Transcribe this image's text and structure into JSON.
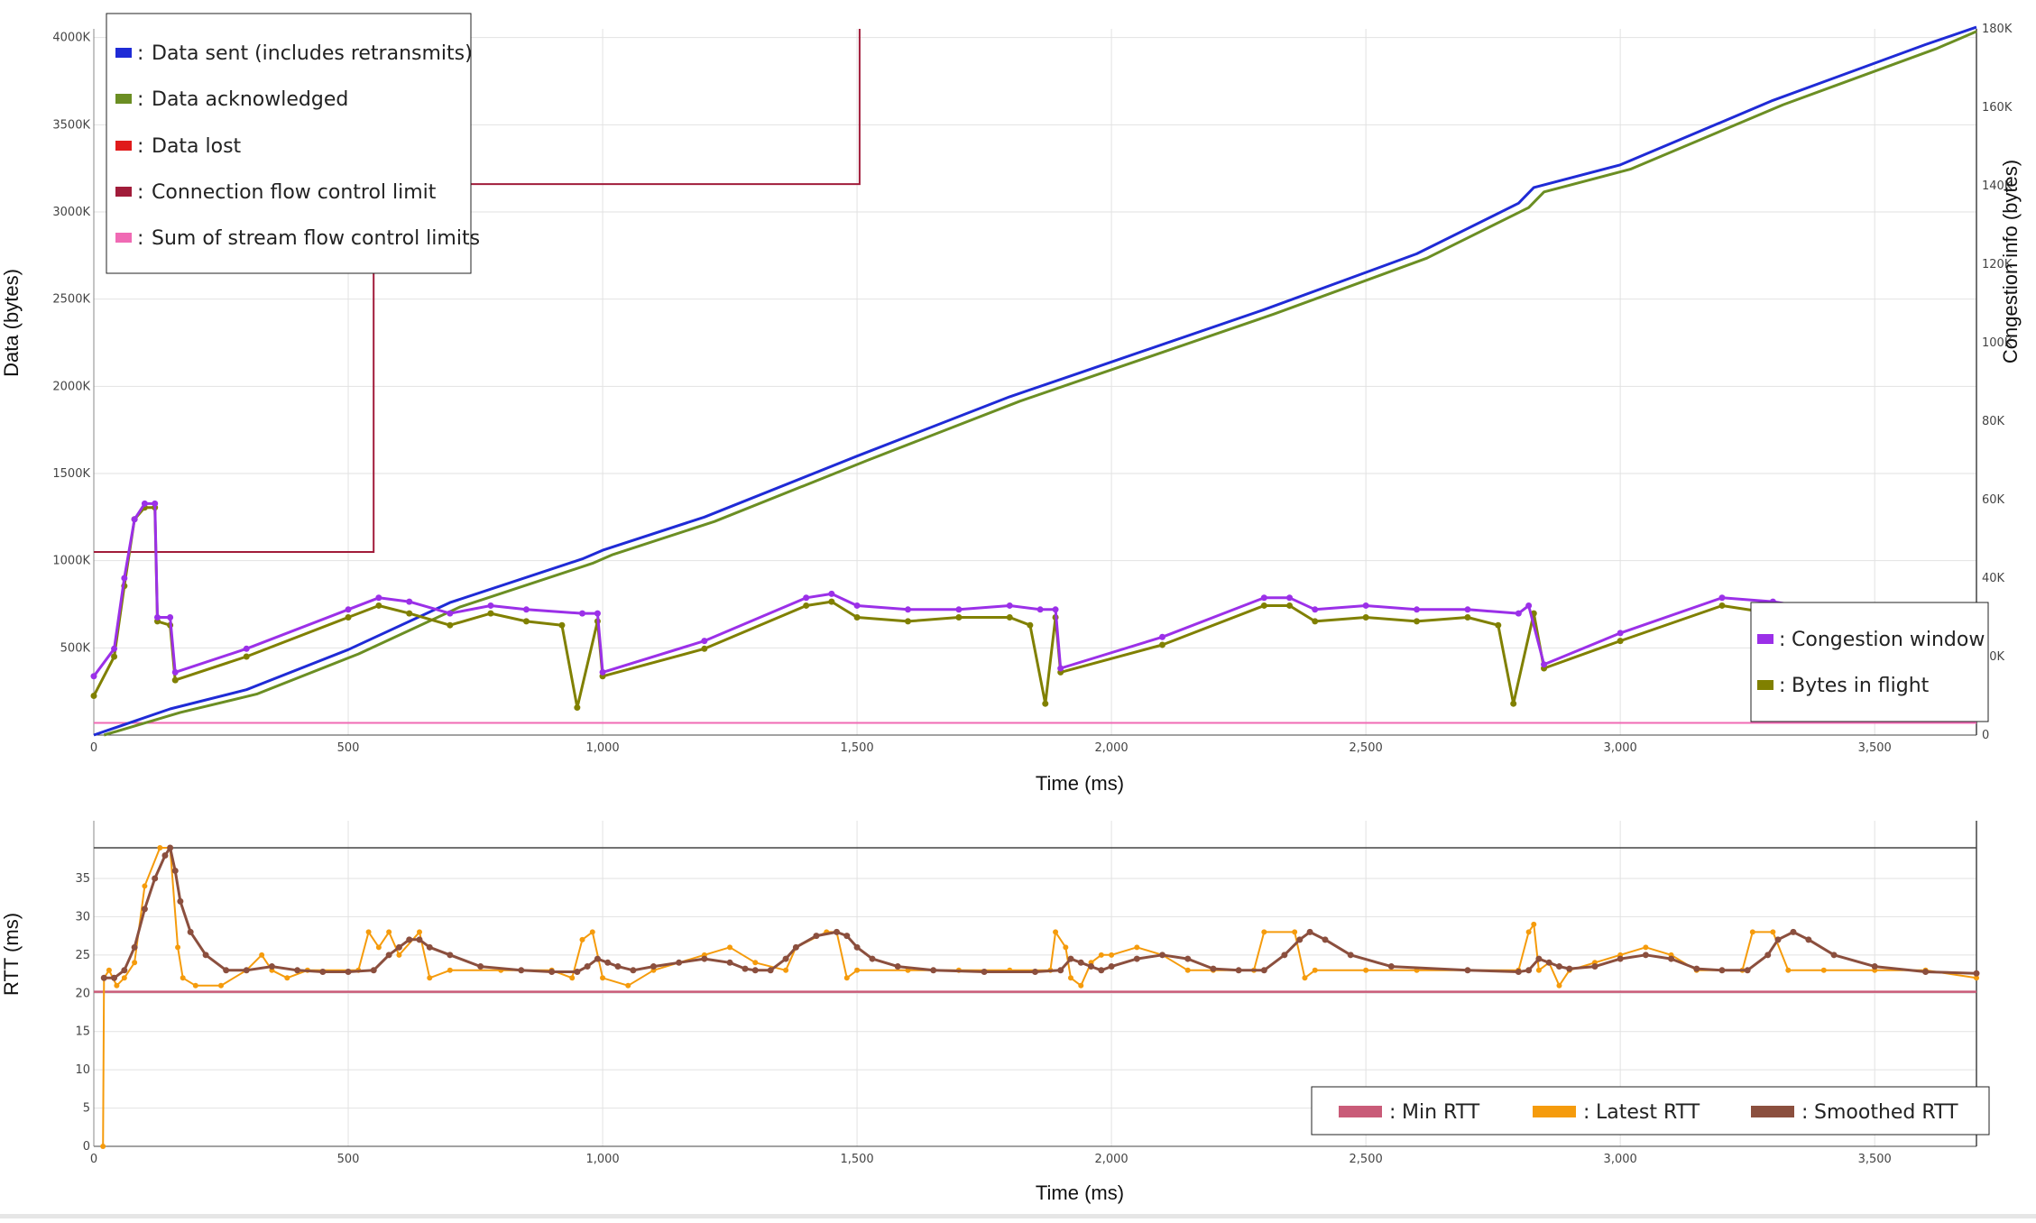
{
  "colors": {
    "data_sent": "#1f2bd6",
    "data_acked": "#6b8e23",
    "data_lost": "#e01b1b",
    "conn_fc": "#a11c3a",
    "stream_fc": "#f06ab4",
    "cwnd": "#9b30e8",
    "bif": "#808000",
    "min_rtt": "#c95b78",
    "latest_rtt": "#f59b0c",
    "smoothed_rtt": "#8b4f3e",
    "grid": "#e2e2e2"
  },
  "chart_data": [
    {
      "type": "line",
      "xlabel": "Time (ms)",
      "ylabel": "Data (bytes)",
      "y2label": "Congestion info (bytes)",
      "xlim": [
        0,
        3700
      ],
      "ylim": [
        0,
        4050000
      ],
      "y2lim": [
        0,
        180000
      ],
      "x_ticks": [
        {
          "v": 0,
          "label": "0"
        },
        {
          "v": 500,
          "label": "500"
        },
        {
          "v": 1000,
          "label": "1,000"
        },
        {
          "v": 1500,
          "label": "1,500"
        },
        {
          "v": 2000,
          "label": "2,000"
        },
        {
          "v": 2500,
          "label": "2,500"
        },
        {
          "v": 3000,
          "label": "3,000"
        },
        {
          "v": 3500,
          "label": "3,500"
        }
      ],
      "y_ticks": [
        {
          "v": 500000,
          "label": "500K"
        },
        {
          "v": 1000000,
          "label": "1000K"
        },
        {
          "v": 1500000,
          "label": "1500K"
        },
        {
          "v": 2000000,
          "label": "2000K"
        },
        {
          "v": 2500000,
          "label": "2500K"
        },
        {
          "v": 3000000,
          "label": "3000K"
        },
        {
          "v": 3500000,
          "label": "3500K"
        },
        {
          "v": 4000000,
          "label": "4000K"
        }
      ],
      "y2_ticks": [
        {
          "v": 0,
          "label": "0"
        },
        {
          "v": 20000,
          "label": "20K"
        },
        {
          "v": 40000,
          "label": "40K"
        },
        {
          "v": 60000,
          "label": "60K"
        },
        {
          "v": 80000,
          "label": "80K"
        },
        {
          "v": 100000,
          "label": "100K"
        },
        {
          "v": 120000,
          "label": "120K"
        },
        {
          "v": 140000,
          "label": "140K"
        },
        {
          "v": 160000,
          "label": "160K"
        },
        {
          "v": 180000,
          "label": "180K"
        }
      ],
      "legend_position": "top-left",
      "legend_secondary_position": "bottom-right",
      "series": [
        {
          "name": "Data sent (includes retransmits)",
          "color_key": "data_sent",
          "axis": "y",
          "x": [
            0,
            150,
            300,
            500,
            700,
            960,
            1000,
            1200,
            1500,
            1800,
            1940,
            2000,
            2300,
            2600,
            2800,
            2830,
            3000,
            3300,
            3600,
            3700
          ],
          "y": [
            0,
            150000,
            260000,
            490000,
            760000,
            1010000,
            1060000,
            1250000,
            1600000,
            1940000,
            2080000,
            2140000,
            2440000,
            2760000,
            3050000,
            3140000,
            3270000,
            3640000,
            3960000,
            4060000
          ]
        },
        {
          "name": "Data acknowledged",
          "color_key": "data_acked",
          "axis": "y",
          "x": [
            20,
            170,
            320,
            520,
            720,
            980,
            1020,
            1220,
            1520,
            1820,
            1960,
            2020,
            2320,
            2620,
            2820,
            2850,
            3020,
            3320,
            3620,
            3700
          ],
          "y": [
            0,
            130000,
            235000,
            465000,
            735000,
            985000,
            1035000,
            1225000,
            1575000,
            1915000,
            2055000,
            2115000,
            2415000,
            2735000,
            3025000,
            3115000,
            3245000,
            3615000,
            3935000,
            4035000
          ]
        },
        {
          "name": "Data lost",
          "color_key": "data_lost",
          "axis": "y",
          "x": [],
          "y": []
        },
        {
          "name": "Connection flow control limit",
          "color_key": "conn_fc",
          "axis": "y",
          "x": [
            0,
            550,
            550,
            1505,
            1505
          ],
          "y": [
            1050000,
            1050000,
            3160000,
            3160000,
            4050000
          ]
        },
        {
          "name": "Sum of stream flow control limits",
          "color_key": "stream_fc",
          "axis": "y",
          "x": [
            0,
            3700
          ],
          "y": [
            70000,
            70000
          ]
        },
        {
          "name": "Congestion window",
          "color_key": "cwnd",
          "axis": "y2",
          "x": [
            0,
            40,
            60,
            80,
            100,
            120,
            125,
            150,
            160,
            300,
            500,
            560,
            620,
            700,
            780,
            850,
            960,
            990,
            1000,
            1200,
            1400,
            1450,
            1500,
            1600,
            1700,
            1800,
            1860,
            1890,
            1900,
            2100,
            2300,
            2350,
            2400,
            2500,
            2600,
            2700,
            2800,
            2820,
            2850,
            3000,
            3200,
            3300,
            3350,
            3450,
            3550
          ],
          "y": [
            15000,
            22000,
            40000,
            55000,
            59000,
            59000,
            30000,
            30000,
            16000,
            22000,
            32000,
            35000,
            34000,
            31000,
            33000,
            32000,
            31000,
            31000,
            16000,
            24000,
            35000,
            36000,
            33000,
            32000,
            32000,
            33000,
            32000,
            32000,
            17000,
            25000,
            35000,
            35000,
            32000,
            33000,
            32000,
            32000,
            31000,
            33000,
            18000,
            26000,
            35000,
            34000,
            33000,
            33000,
            32000
          ]
        },
        {
          "name": "Bytes in flight",
          "color_key": "bif",
          "axis": "y2",
          "x": [
            0,
            40,
            60,
            80,
            100,
            120,
            125,
            150,
            160,
            300,
            500,
            560,
            620,
            700,
            780,
            850,
            920,
            950,
            990,
            1000,
            1200,
            1400,
            1450,
            1500,
            1600,
            1700,
            1800,
            1840,
            1870,
            1890,
            1900,
            2100,
            2300,
            2350,
            2400,
            2500,
            2600,
            2700,
            2760,
            2790,
            2830,
            2850,
            3000,
            3200,
            3300,
            3350,
            3450,
            3550
          ],
          "y": [
            10000,
            20000,
            38000,
            55000,
            58000,
            58000,
            29000,
            28000,
            14000,
            20000,
            30000,
            33000,
            31000,
            28000,
            31000,
            29000,
            28000,
            7000,
            29000,
            15000,
            22000,
            33000,
            34000,
            30000,
            29000,
            30000,
            30000,
            28000,
            8000,
            30000,
            16000,
            23000,
            33000,
            33000,
            29000,
            30000,
            29000,
            30000,
            28000,
            8000,
            31000,
            17000,
            24000,
            33000,
            31000,
            30000,
            30000,
            29000
          ]
        }
      ]
    },
    {
      "type": "line",
      "xlabel": "Time (ms)",
      "ylabel": "RTT (ms)",
      "xlim": [
        0,
        3700
      ],
      "ylim": [
        0,
        39
      ],
      "x_ticks": [
        {
          "v": 0,
          "label": "0"
        },
        {
          "v": 500,
          "label": "500"
        },
        {
          "v": 1000,
          "label": "1,000"
        },
        {
          "v": 1500,
          "label": "1,500"
        },
        {
          "v": 2000,
          "label": "2,000"
        },
        {
          "v": 2500,
          "label": "2,500"
        },
        {
          "v": 3000,
          "label": "3,000"
        },
        {
          "v": 3500,
          "label": "3,500"
        }
      ],
      "y_ticks": [
        {
          "v": 0,
          "label": "0"
        },
        {
          "v": 5,
          "label": "5"
        },
        {
          "v": 10,
          "label": "10"
        },
        {
          "v": 15,
          "label": "15"
        },
        {
          "v": 20,
          "label": "20"
        },
        {
          "v": 25,
          "label": "25"
        },
        {
          "v": 30,
          "label": "30"
        },
        {
          "v": 35,
          "label": "35"
        }
      ],
      "legend_position": "bottom-right",
      "series": [
        {
          "name": "Min RTT",
          "color_key": "min_rtt",
          "x": [
            0,
            3700
          ],
          "y": [
            20.2,
            20.2
          ]
        },
        {
          "name": "Latest RTT",
          "color_key": "latest_rtt",
          "x": [
            18,
            20,
            30,
            45,
            60,
            80,
            100,
            130,
            150,
            165,
            175,
            200,
            250,
            300,
            330,
            350,
            380,
            420,
            520,
            540,
            560,
            580,
            600,
            640,
            660,
            700,
            800,
            900,
            940,
            960,
            980,
            1000,
            1050,
            1100,
            1150,
            1200,
            1250,
            1300,
            1360,
            1380,
            1440,
            1460,
            1480,
            1500,
            1600,
            1700,
            1800,
            1880,
            1890,
            1910,
            1920,
            1940,
            1960,
            1980,
            2000,
            2050,
            2100,
            2150,
            2200,
            2280,
            2300,
            2360,
            2380,
            2400,
            2500,
            2600,
            2700,
            2800,
            2820,
            2830,
            2840,
            2860,
            2880,
            2900,
            2950,
            3000,
            3050,
            3100,
            3150,
            3200,
            3240,
            3260,
            3300,
            3330,
            3400,
            3500,
            3600,
            3700
          ],
          "y": [
            0,
            22,
            23,
            21,
            22,
            24,
            34,
            39,
            39,
            26,
            22,
            21,
            21,
            23,
            25,
            23,
            22,
            23,
            23,
            28,
            26,
            28,
            25,
            28,
            22,
            23,
            23,
            23,
            22,
            27,
            28,
            22,
            21,
            23,
            24,
            25,
            26,
            24,
            23,
            26,
            28,
            28,
            22,
            23,
            23,
            23,
            23,
            23,
            28,
            26,
            22,
            21,
            24,
            25,
            25,
            26,
            25,
            23,
            23,
            23,
            28,
            28,
            22,
            23,
            23,
            23,
            23,
            23,
            28,
            29,
            23,
            24,
            21,
            23,
            24,
            25,
            26,
            25,
            23,
            23,
            23,
            28,
            28,
            23,
            23,
            23,
            23,
            22
          ]
        },
        {
          "name": "Smoothed RTT",
          "color_key": "smoothed_rtt",
          "x": [
            20,
            40,
            60,
            80,
            100,
            120,
            140,
            150,
            160,
            170,
            190,
            220,
            260,
            300,
            350,
            400,
            450,
            500,
            550,
            580,
            600,
            620,
            640,
            660,
            700,
            760,
            840,
            900,
            950,
            970,
            990,
            1010,
            1030,
            1060,
            1100,
            1150,
            1200,
            1250,
            1280,
            1300,
            1330,
            1360,
            1380,
            1420,
            1460,
            1480,
            1500,
            1530,
            1580,
            1650,
            1750,
            1850,
            1900,
            1920,
            1940,
            1960,
            1980,
            2000,
            2050,
            2100,
            2150,
            2200,
            2250,
            2300,
            2340,
            2370,
            2390,
            2420,
            2470,
            2550,
            2700,
            2800,
            2820,
            2840,
            2860,
            2880,
            2900,
            2950,
            3000,
            3050,
            3100,
            3150,
            3200,
            3250,
            3290,
            3310,
            3340,
            3370,
            3420,
            3500,
            3600,
            3700
          ],
          "y": [
            22,
            22,
            23,
            26,
            31,
            35,
            38,
            39,
            36,
            32,
            28,
            25,
            23,
            23,
            23.5,
            23,
            22.8,
            22.8,
            23,
            25,
            26,
            27,
            27,
            26,
            25,
            23.5,
            23,
            22.8,
            22.8,
            23.5,
            24.5,
            24,
            23.5,
            23,
            23.5,
            24,
            24.5,
            24,
            23.2,
            23,
            23,
            24.5,
            26,
            27.5,
            28,
            27.5,
            26,
            24.5,
            23.5,
            23,
            22.8,
            22.8,
            23,
            24.5,
            24,
            23.5,
            23,
            23.5,
            24.5,
            25,
            24.5,
            23.2,
            23,
            23,
            25,
            27,
            28,
            27,
            25,
            23.5,
            23,
            22.8,
            23,
            24.5,
            24,
            23.5,
            23.2,
            23.5,
            24.5,
            25,
            24.5,
            23.2,
            23,
            23,
            25,
            27,
            28,
            27,
            25,
            23.5,
            22.8,
            22.6
          ]
        }
      ]
    }
  ]
}
